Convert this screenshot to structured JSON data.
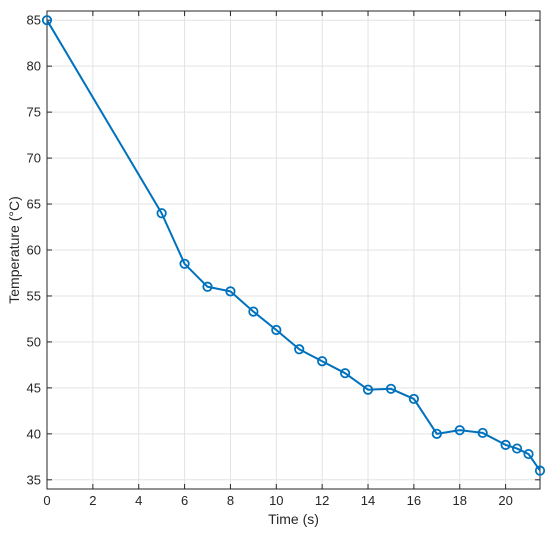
{
  "chart_data": {
    "type": "line",
    "title": "",
    "xlabel": "Time (s)",
    "ylabel": "Temperature (°C)",
    "xlim": [
      0,
      21.5
    ],
    "ylim": [
      34,
      86
    ],
    "xticks": [
      0,
      2,
      4,
      6,
      8,
      10,
      12,
      14,
      16,
      18,
      20
    ],
    "yticks": [
      35,
      40,
      45,
      50,
      55,
      60,
      65,
      70,
      75,
      80,
      85
    ],
    "grid": true,
    "legend": "none",
    "series": [
      {
        "color": "#0072BD",
        "marker": "circle",
        "x": [
          0,
          5,
          6,
          7,
          8,
          9,
          10,
          11,
          12,
          13,
          14,
          15,
          16,
          17,
          18,
          19,
          20,
          20.5,
          21,
          21.5
        ],
        "y": [
          85,
          64,
          58.5,
          56,
          55.5,
          53.3,
          51.3,
          49.2,
          47.9,
          46.6,
          44.8,
          44.9,
          43.8,
          40,
          40.4,
          40.1,
          38.8,
          38.4,
          37.8,
          36
        ]
      }
    ]
  }
}
